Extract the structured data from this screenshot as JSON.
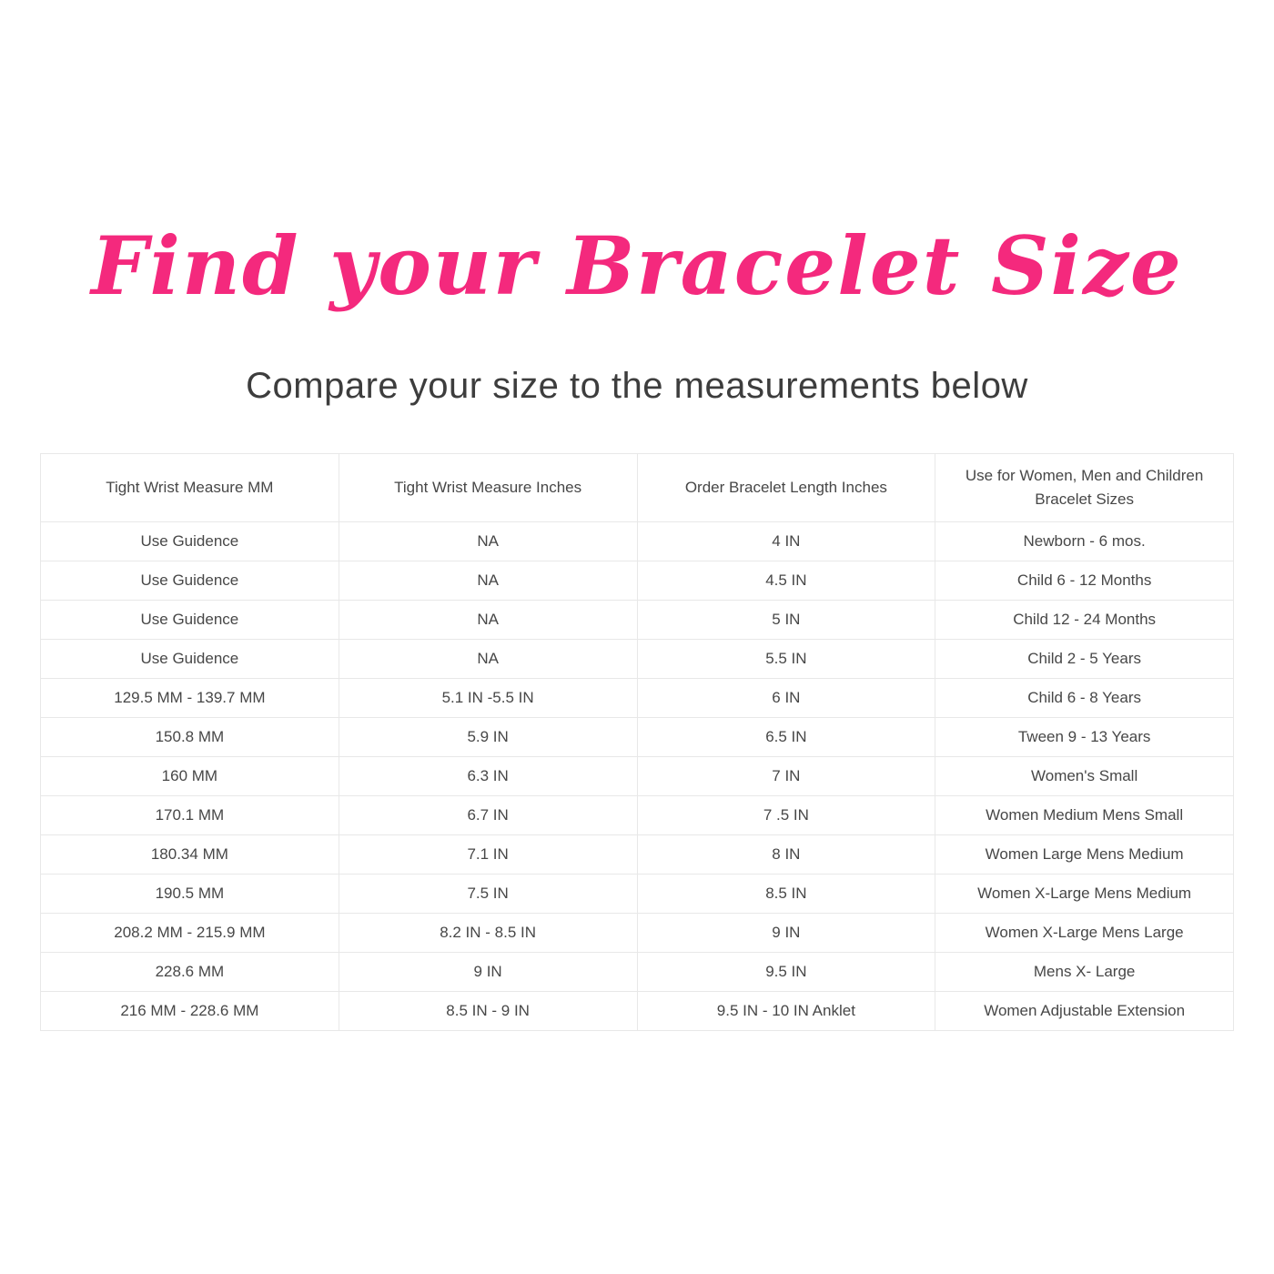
{
  "page": {
    "title": "Find your Bracelet Size",
    "subtitle": "Compare your size to the measurements below",
    "accent_color": "#f4297d",
    "text_color": "#474747",
    "border_color": "#e8e8e8"
  },
  "table": {
    "columns": [
      "Tight Wrist Measure MM",
      "Tight Wrist Measure Inches",
      "Order Bracelet Length Inches",
      "Use for Women, Men and Children Bracelet Sizes"
    ],
    "rows": [
      [
        "Use Guidence",
        "NA",
        "4 IN",
        "Newborn - 6 mos."
      ],
      [
        "Use Guidence",
        "NA",
        "4.5 IN",
        "Child 6 - 12 Months"
      ],
      [
        "Use Guidence",
        "NA",
        "5 IN",
        "Child 12 - 24 Months"
      ],
      [
        "Use Guidence",
        "NA",
        "5.5 IN",
        "Child 2 - 5 Years"
      ],
      [
        "129.5 MM - 139.7 MM",
        "5.1 IN -5.5 IN",
        "6 IN",
        "Child 6 - 8 Years"
      ],
      [
        "150.8 MM",
        "5.9 IN",
        "6.5 IN",
        "Tween 9 - 13 Years"
      ],
      [
        "160 MM",
        "6.3 IN",
        "7 IN",
        "Women's Small"
      ],
      [
        "170.1 MM",
        "6.7 IN",
        "7 .5 IN",
        "Women Medium Mens Small"
      ],
      [
        "180.34 MM",
        "7.1 IN",
        "8 IN",
        "Women Large Mens Medium"
      ],
      [
        "190.5 MM",
        "7.5 IN",
        "8.5 IN",
        "Women X-Large Mens Medium"
      ],
      [
        "208.2 MM - 215.9 MM",
        "8.2 IN - 8.5 IN",
        "9 IN",
        "Women X-Large Mens Large"
      ],
      [
        "228.6 MM",
        "9 IN",
        "9.5 IN",
        "Mens X- Large"
      ],
      [
        "216 MM - 228.6 MM",
        "8.5 IN - 9 IN",
        "9.5 IN - 10 IN Anklet",
        "Women Adjustable Extension"
      ]
    ]
  }
}
